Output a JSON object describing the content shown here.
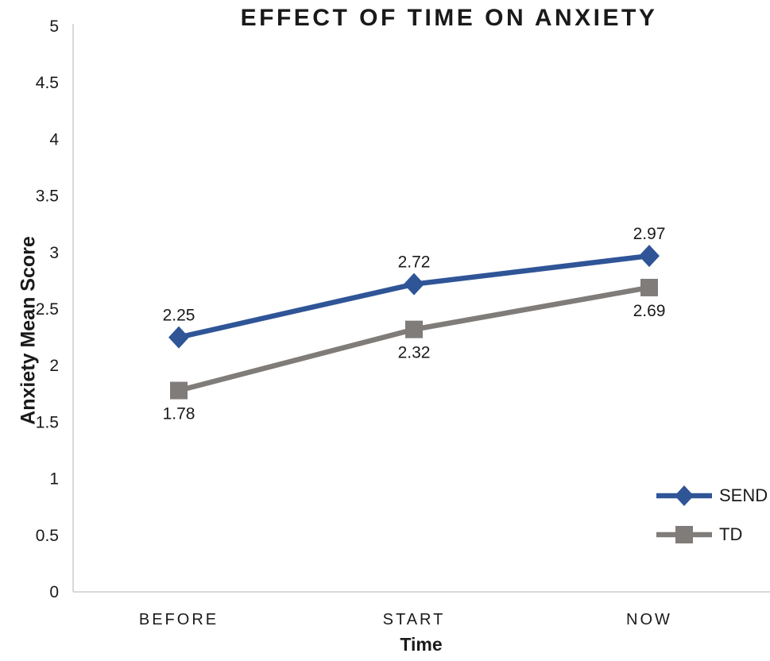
{
  "chart_data": {
    "type": "line",
    "title": "EFFECT OF TIME ON ANXIETY",
    "xlabel": "Time",
    "ylabel": "Anxiety Mean Score",
    "categories": [
      "BEFORE",
      "START",
      "NOW"
    ],
    "ylim": [
      0,
      5
    ],
    "ytick_step": 0.5,
    "ytick_labels": [
      "0",
      "0.5",
      "1",
      "1.5",
      "2",
      "2.5",
      "3",
      "3.5",
      "4",
      "4.5",
      "5"
    ],
    "grid": false,
    "legend_position": "right",
    "axis_color": "#d9d9d9",
    "text_color": "#1a1a1a",
    "series": [
      {
        "name": "SEND",
        "values": [
          2.25,
          2.72,
          2.97
        ],
        "data_labels": [
          "2.25",
          "2.72",
          "2.97"
        ],
        "color": "#2f5597",
        "marker": "diamond",
        "label_position": "above"
      },
      {
        "name": "TD",
        "values": [
          1.78,
          2.32,
          2.69
        ],
        "data_labels": [
          "1.78",
          "2.32",
          "2.69"
        ],
        "color": "#7f7c79",
        "marker": "square",
        "label_position": "below"
      }
    ]
  }
}
